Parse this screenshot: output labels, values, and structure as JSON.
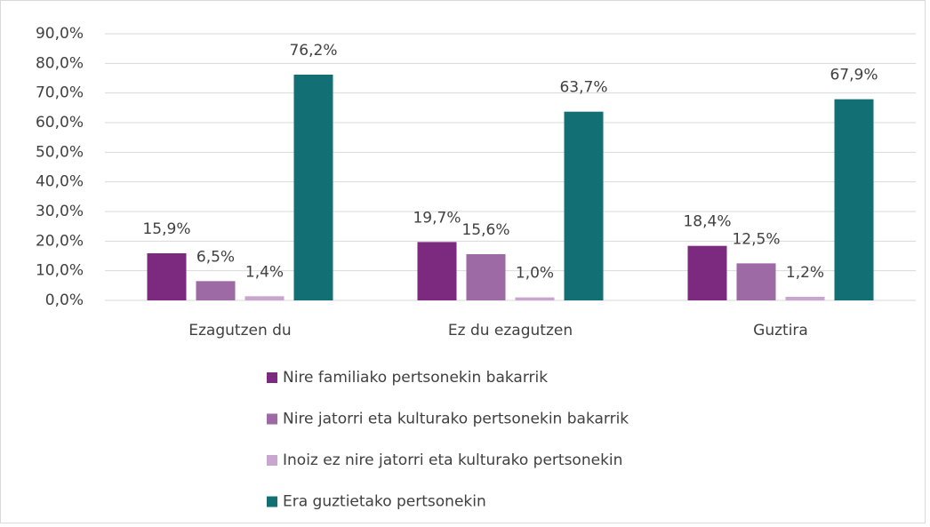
{
  "chart_data": {
    "type": "bar",
    "categories": [
      "Ezagutzen du",
      "Ez du ezagutzen",
      "Guztira"
    ],
    "series": [
      {
        "name": "Nire familiako pertsonekin bakarrik",
        "color": "#7b2a7f",
        "values": [
          15.9,
          19.7,
          18.4
        ],
        "value_labels": [
          "15,9%",
          "19,7%",
          "18,4%"
        ]
      },
      {
        "name": "Nire jatorri eta kulturako pertsonekin bakarrik",
        "color": "#9e6aa6",
        "values": [
          6.5,
          15.6,
          12.5
        ],
        "value_labels": [
          "6,5%",
          "15,6%",
          "12,5%"
        ]
      },
      {
        "name": "Inoiz ez nire jatorri eta kulturako pertsonekin",
        "color": "#c8a6d0",
        "values": [
          1.4,
          1.0,
          1.2
        ],
        "value_labels": [
          "1,4%",
          "1,0%",
          "1,2%"
        ]
      },
      {
        "name": "Era guztietako pertsonekin",
        "color": "#127075",
        "values": [
          76.2,
          63.7,
          67.9
        ],
        "value_labels": [
          "76,2%",
          "63,7%",
          "67,9%"
        ]
      }
    ],
    "ylim": [
      0,
      90
    ],
    "yticks": [
      {
        "value": 0,
        "label": "0,0%"
      },
      {
        "value": 10,
        "label": "10,0%"
      },
      {
        "value": 20,
        "label": "20,0%"
      },
      {
        "value": 30,
        "label": "30,0%"
      },
      {
        "value": 40,
        "label": "40,0%"
      },
      {
        "value": 50,
        "label": "50,0%"
      },
      {
        "value": 60,
        "label": "60,0%"
      },
      {
        "value": 70,
        "label": "70,0%"
      },
      {
        "value": 80,
        "label": "80,0%"
      },
      {
        "value": 90,
        "label": "90,0%"
      }
    ],
    "grid": true,
    "legend": "bottom"
  }
}
